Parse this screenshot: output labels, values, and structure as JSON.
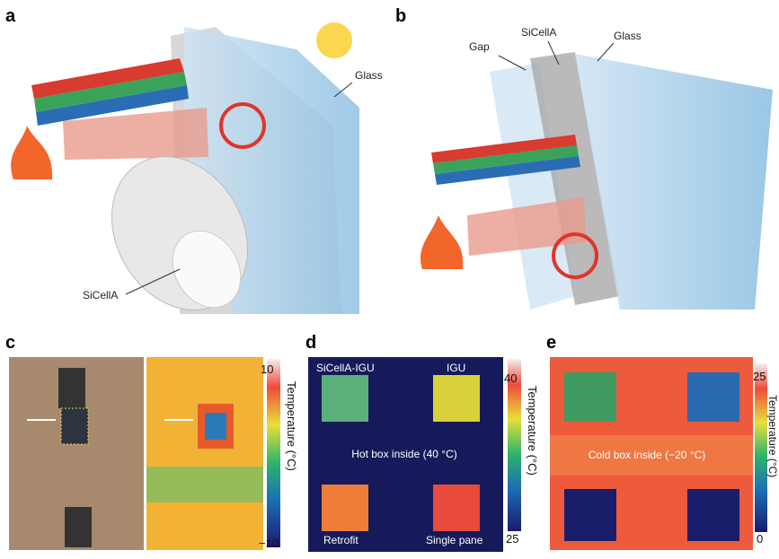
{
  "panels": [
    {
      "label": "a",
      "annotations": [
        "Glass",
        "SiCellA"
      ]
    },
    {
      "label": "b",
      "annotations": [
        "Gap",
        "SiCellA",
        "Glass"
      ]
    },
    {
      "label": "c",
      "colorbar": {
        "top": "10",
        "bottom": "−10",
        "title": "Temperature (°C)"
      }
    },
    {
      "label": "d",
      "annotations": [
        "SiCellA-IGU",
        "IGU",
        "Hot box inside (40 °C)",
        "Retrofit",
        "Single pane"
      ],
      "colorbar": {
        "top": "40",
        "bottom": "25",
        "title": "Temperature (°C)"
      }
    },
    {
      "label": "e",
      "annotations": [
        "Cold box inside (−20 °C)"
      ],
      "colorbar": {
        "top": "25",
        "bottom": "0",
        "title": "Temperature (°C)"
      }
    }
  ]
}
